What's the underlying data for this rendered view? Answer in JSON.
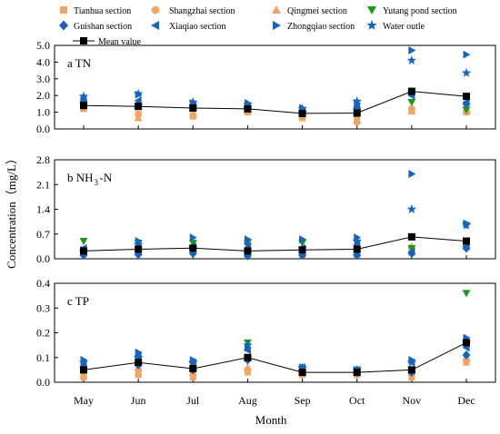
{
  "figure": {
    "ylabel": "Concentration（mg/L）",
    "xlabel": "Month"
  },
  "colors": {
    "orange": "#F4A460",
    "green": "#1A9A1A",
    "blue": "#1565C0",
    "black": "#000000"
  },
  "legend": [
    {
      "name": "Tianhua section",
      "marker": "square",
      "color": "#F4A460"
    },
    {
      "name": "Shangzhai section",
      "marker": "circle",
      "color": "#F4A460"
    },
    {
      "name": "Qingmei section",
      "marker": "triangle-up",
      "color": "#F4A460"
    },
    {
      "name": "Yutang pond section",
      "marker": "triangle-down",
      "color": "#1A9A1A"
    },
    {
      "name": "Guishan section",
      "marker": "diamond",
      "color": "#1565C0"
    },
    {
      "name": "Xiaqiao section",
      "marker": "triangle-left",
      "color": "#1565C0"
    },
    {
      "name": "Zhongqiao section",
      "marker": "triangle-right",
      "color": "#1565C0"
    },
    {
      "name": "Water outle",
      "marker": "star",
      "color": "#1565C0"
    },
    {
      "name": "Mean value",
      "marker": "square-line",
      "color": "#000000"
    }
  ],
  "chart_data": [
    {
      "type": "scatter",
      "panel_label": "a TN",
      "categories": [
        "May",
        "Jun",
        "Jul",
        "Aug",
        "Sep",
        "Oct",
        "Nov",
        "Dec"
      ],
      "ylim": [
        0,
        5.0
      ],
      "yticks": [
        "0.0",
        "1.0",
        "2.0",
        "3.0",
        "4.0",
        "5.0"
      ],
      "series": [
        {
          "name": "Tianhua section",
          "values": [
            1.25,
            0.9,
            0.75,
            1.0,
            0.65,
            0.55,
            1.1,
            1.0
          ]
        },
        {
          "name": "Shangzhai section",
          "values": [
            1.3,
            0.85,
            0.85,
            1.05,
            0.7,
            0.4,
            1.2,
            1.05
          ]
        },
        {
          "name": "Qingmei section",
          "values": [
            1.2,
            0.65,
            0.9,
            1.1,
            0.8,
            0.5,
            1.05,
            1.1
          ]
        },
        {
          "name": "Yutang pond section",
          "values": [
            1.5,
            1.35,
            1.3,
            1.2,
            0.9,
            1.1,
            1.6,
            1.15
          ]
        },
        {
          "name": "Guishan section",
          "values": [
            1.6,
            1.5,
            1.4,
            1.3,
            1.0,
            1.2,
            2.2,
            1.5
          ]
        },
        {
          "name": "Xiaqiao section",
          "values": [
            1.8,
            1.7,
            1.45,
            1.35,
            1.1,
            1.3,
            2.0,
            1.6
          ]
        },
        {
          "name": "Zhongqiao section",
          "values": [
            1.7,
            2.05,
            1.55,
            1.55,
            1.25,
            1.55,
            4.7,
            4.45
          ]
        },
        {
          "name": "Water outle",
          "values": [
            1.95,
            2.1,
            1.6,
            1.45,
            1.2,
            1.65,
            4.1,
            3.35
          ]
        },
        {
          "name": "Mean value",
          "values": [
            1.4,
            1.35,
            1.25,
            1.2,
            0.93,
            0.95,
            2.25,
            1.95
          ]
        }
      ]
    },
    {
      "type": "scatter",
      "panel_label": "b NH",
      "panel_label_sub": "3",
      "panel_label_tail": "-N",
      "categories": [
        "May",
        "Jun",
        "Jul",
        "Aug",
        "Sep",
        "Oct",
        "Nov",
        "Dec"
      ],
      "ylim": [
        0,
        2.8
      ],
      "yticks": [
        "0.0",
        "0.7",
        "1.4",
        "2.1",
        "2.8"
      ],
      "series": [
        {
          "name": "Tianhua section",
          "values": [
            0.15,
            0.18,
            0.2,
            0.12,
            0.1,
            0.1,
            0.2,
            0.35
          ]
        },
        {
          "name": "Shangzhai section",
          "values": [
            0.2,
            0.25,
            0.25,
            0.2,
            0.15,
            0.15,
            0.3,
            0.4
          ]
        },
        {
          "name": "Qingmei section",
          "values": [
            0.25,
            0.3,
            0.3,
            0.25,
            0.2,
            0.2,
            0.35,
            0.45
          ]
        },
        {
          "name": "Yutang pond section",
          "values": [
            0.5,
            0.45,
            0.45,
            0.45,
            0.45,
            0.45,
            0.3,
            0.95
          ]
        },
        {
          "name": "Guishan section",
          "values": [
            0.1,
            0.12,
            0.15,
            0.08,
            0.1,
            0.1,
            0.15,
            0.3
          ]
        },
        {
          "name": "Xiaqiao section",
          "values": [
            0.3,
            0.35,
            0.35,
            0.3,
            0.3,
            0.4,
            0.2,
            0.35
          ]
        },
        {
          "name": "Zhongqiao section",
          "values": [
            0.25,
            0.5,
            0.6,
            0.55,
            0.55,
            0.6,
            2.4,
            1.0
          ]
        },
        {
          "name": "Water outle",
          "values": [
            0.2,
            0.4,
            0.3,
            0.4,
            0.3,
            0.5,
            1.4,
            0.95
          ]
        },
        {
          "name": "Mean value",
          "values": [
            0.22,
            0.27,
            0.3,
            0.22,
            0.25,
            0.27,
            0.62,
            0.5
          ]
        }
      ]
    },
    {
      "type": "scatter",
      "panel_label": "c TP",
      "categories": [
        "May",
        "Jun",
        "Jul",
        "Aug",
        "Sep",
        "Oct",
        "Nov",
        "Dec"
      ],
      "ylim": [
        0,
        0.4
      ],
      "yticks": [
        "0.0",
        "0.1",
        "0.2",
        "0.3",
        "0.4"
      ],
      "series": [
        {
          "name": "Tianhua section",
          "values": [
            0.02,
            0.03,
            0.02,
            0.04,
            0.03,
            0.03,
            0.02,
            0.08
          ]
        },
        {
          "name": "Shangzhai section",
          "values": [
            0.04,
            0.05,
            0.03,
            0.05,
            0.03,
            0.03,
            0.03,
            0.09
          ]
        },
        {
          "name": "Qingmei section",
          "values": [
            0.03,
            0.04,
            0.04,
            0.06,
            0.04,
            0.04,
            0.04,
            0.1
          ]
        },
        {
          "name": "Yutang pond section",
          "values": [
            0.05,
            0.09,
            0.07,
            0.16,
            0.05,
            0.05,
            0.05,
            0.36
          ]
        },
        {
          "name": "Guishan section",
          "values": [
            0.06,
            0.07,
            0.05,
            0.09,
            0.05,
            0.04,
            0.04,
            0.11
          ]
        },
        {
          "name": "Xiaqiao section",
          "values": [
            0.07,
            0.11,
            0.08,
            0.13,
            0.06,
            0.05,
            0.08,
            0.14
          ]
        },
        {
          "name": "Zhongqiao section",
          "values": [
            0.09,
            0.12,
            0.09,
            0.14,
            0.06,
            0.05,
            0.09,
            0.18
          ]
        },
        {
          "name": "Water outle",
          "values": [
            0.08,
            0.1,
            0.08,
            0.15,
            0.06,
            0.05,
            0.08,
            0.16
          ]
        },
        {
          "name": "Mean value",
          "values": [
            0.05,
            0.08,
            0.055,
            0.1,
            0.04,
            0.04,
            0.05,
            0.16
          ]
        }
      ]
    }
  ]
}
